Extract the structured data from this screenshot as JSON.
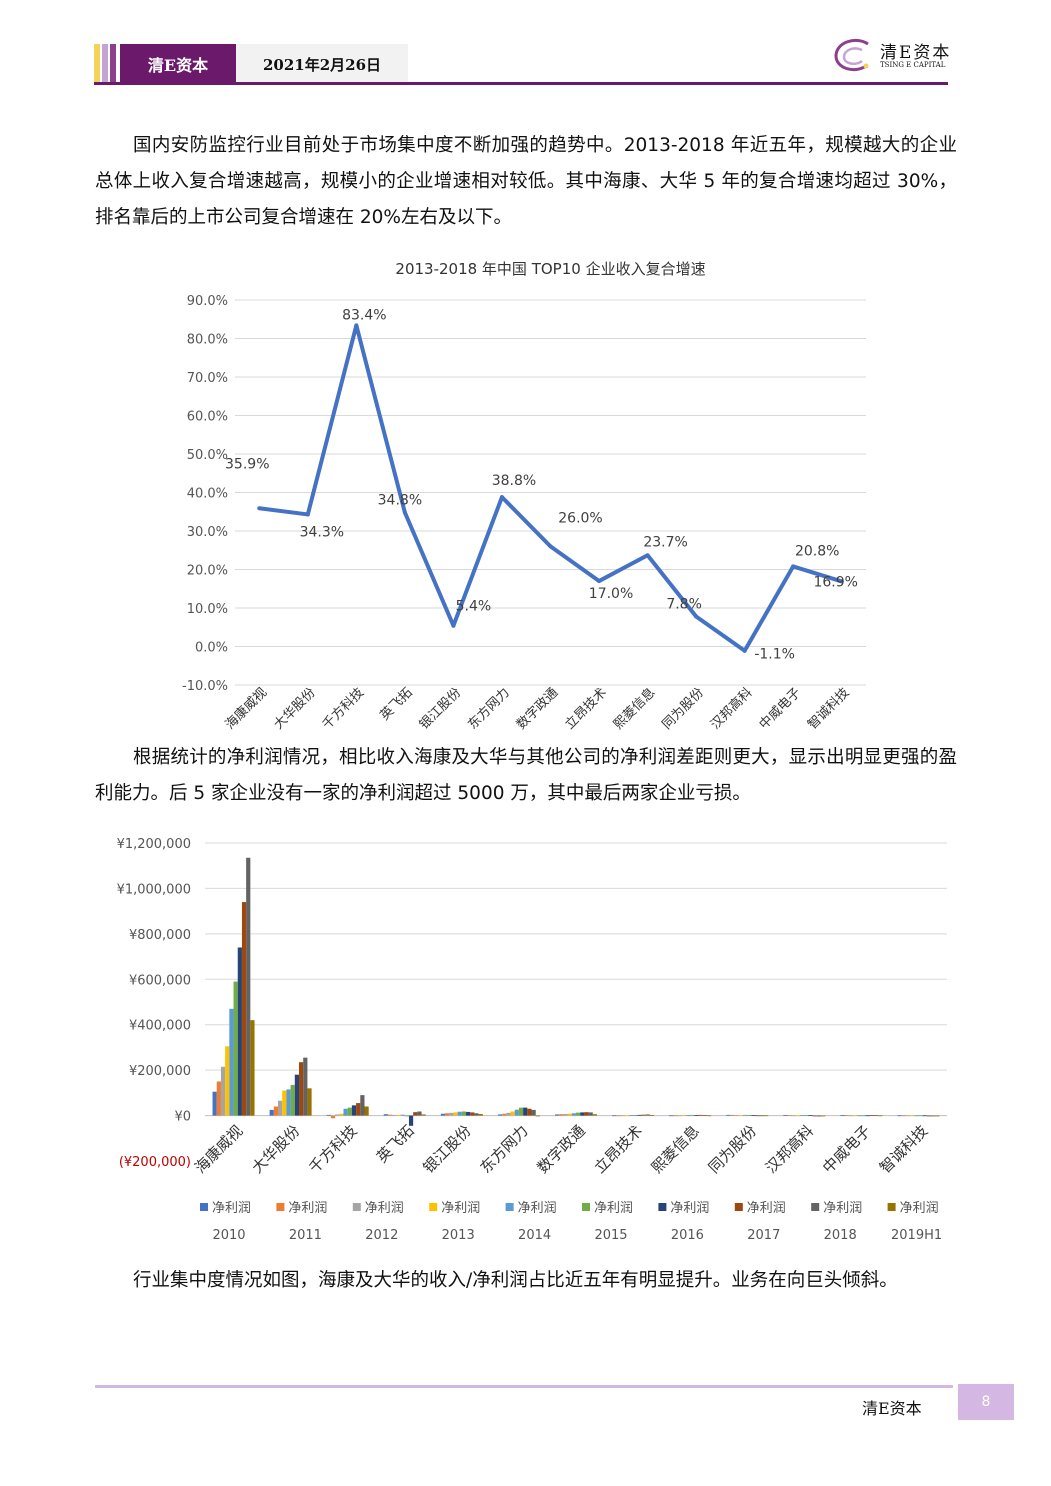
{
  "header": {
    "brand": "清E资本",
    "date": "2021年2月26日",
    "logo_cn": "清E资本",
    "logo_en": "TSING E CAPITAL",
    "colors": {
      "brand_purple": "#6b1a6b",
      "bar1": "#f3d35a",
      "bar2": "#c7a3d4",
      "bar3": "#8d3f8d",
      "bar4": "#c9c9c9"
    }
  },
  "paragraphs": [
    "国内安防监控行业目前处于市场集中度不断加强的趋势中。2013-2018 年近五年，规模越大的企业总体上收入复合增速越高，规模小的企业增速相对较低。其中海康、大华 5 年的复合增速均超过 30%，排名靠后的上市公司复合增速在 20%左右及以下。",
    "根据统计的净利润情况，相比收入海康及大华与其他公司的净利润差距则更大，显示出明显更强的盈利能力。后 5 家企业没有一家的净利润超过 5000 万，其中最后两家企业亏损。",
    "行业集中度情况如图，海康及大华的收入/净利润占比近五年有明显提升。业务在向巨头倾斜。"
  ],
  "footer": {
    "brand": "清E资本",
    "page": "8"
  },
  "chart_data": [
    {
      "type": "line",
      "title": "2013-2018 年中国 TOP10 企业收入复合增速",
      "categories": [
        "海康威视",
        "大华股份",
        "千方科技",
        "英飞拓",
        "银江股份",
        "东方网力",
        "数字政通",
        "立昂技术",
        "熙菱信息",
        "同为股份",
        "汉邦高科",
        "中威电子",
        "智诚科技"
      ],
      "values": [
        35.9,
        34.3,
        83.4,
        34.8,
        5.4,
        38.8,
        26.0,
        17.0,
        23.7,
        7.8,
        -1.1,
        20.8,
        16.9
      ],
      "data_labels": [
        "35.9%",
        "34.3%",
        "83.4%",
        "34.8%",
        "5.4%",
        "38.8%",
        "26.0%",
        "17.0%",
        "23.7%",
        "7.8%",
        "-1.1%",
        "20.8%",
        "16.9%"
      ],
      "yticks": [
        "90.0%",
        "80.0%",
        "70.0%",
        "60.0%",
        "50.0%",
        "40.0%",
        "30.0%",
        "20.0%",
        "10.0%",
        "0.0%",
        "-10.0%"
      ],
      "ylim": [
        -10,
        90
      ],
      "grid": true,
      "color": "#4472c4"
    },
    {
      "type": "bar",
      "categories": [
        "海康威视",
        "大华股份",
        "千方科技",
        "英飞拓",
        "银江股份",
        "东方网力",
        "数字政通",
        "立昂技术",
        "熙菱信息",
        "同为股份",
        "汉邦高科",
        "中威电子",
        "智诚科技"
      ],
      "yticks": [
        "¥1,200,000",
        "¥1,000,000",
        "¥800,000",
        "¥600,000",
        "¥400,000",
        "¥200,000",
        "¥0",
        "(¥200,000)"
      ],
      "ylim": [
        -200000,
        1200000
      ],
      "grid": true,
      "legend_position": "bottom",
      "series": [
        {
          "name": "净利润",
          "period": "2010",
          "color": "#4472c4",
          "values": [
            105000,
            25000,
            3000,
            6000,
            8000,
            5000,
            5000,
            1000,
            1000,
            3000,
            2000,
            2000,
            1000
          ]
        },
        {
          "name": "净利润",
          "period": "2011",
          "color": "#ed7d31",
          "values": [
            150000,
            40000,
            -12000,
            4000,
            10000,
            8000,
            6000,
            1000,
            1000,
            3000,
            2000,
            2000,
            1000
          ]
        },
        {
          "name": "净利润",
          "period": "2012",
          "color": "#a5a5a5",
          "values": [
            215000,
            65000,
            5000,
            3000,
            12000,
            12000,
            7000,
            1000,
            1000,
            2000,
            1000,
            1000,
            1000
          ]
        },
        {
          "name": "净利润",
          "period": "2013",
          "color": "#ffc000",
          "values": [
            305000,
            110000,
            8000,
            3000,
            14000,
            18000,
            8000,
            1000,
            2000,
            2000,
            1000,
            1000,
            1000
          ]
        },
        {
          "name": "净利润",
          "period": "2014",
          "color": "#5b9bd5",
          "values": [
            470000,
            115000,
            30000,
            4000,
            17000,
            26000,
            10000,
            2000,
            2000,
            3000,
            2000,
            1000,
            1000
          ]
        },
        {
          "name": "净利润",
          "period": "2015",
          "color": "#70ad47",
          "values": [
            590000,
            135000,
            35000,
            -2000,
            18000,
            35000,
            13000,
            2000,
            3000,
            2000,
            2000,
            1000,
            1000
          ]
        },
        {
          "name": "净利润",
          "period": "2016",
          "color": "#264478",
          "values": [
            740000,
            180000,
            45000,
            -45000,
            16000,
            35000,
            14000,
            3000,
            2000,
            2000,
            2000,
            1000,
            1000
          ]
        },
        {
          "name": "净利润",
          "period": "2017",
          "color": "#9e480e",
          "values": [
            940000,
            235000,
            55000,
            15000,
            14000,
            30000,
            15000,
            4000,
            3000,
            1000,
            -2000,
            2000,
            -1000
          ]
        },
        {
          "name": "净利润",
          "period": "2018",
          "color": "#636363",
          "values": [
            1135000,
            255000,
            90000,
            18000,
            10000,
            25000,
            14000,
            5000,
            2000,
            1000,
            -4000,
            2000,
            -3000
          ]
        },
        {
          "name": "净利润",
          "period": "2019H1",
          "color": "#997300",
          "values": [
            420000,
            120000,
            40000,
            5000,
            7000,
            -2000,
            6000,
            2000,
            1000,
            1000,
            -1000,
            1000,
            -2000
          ]
        }
      ]
    }
  ]
}
